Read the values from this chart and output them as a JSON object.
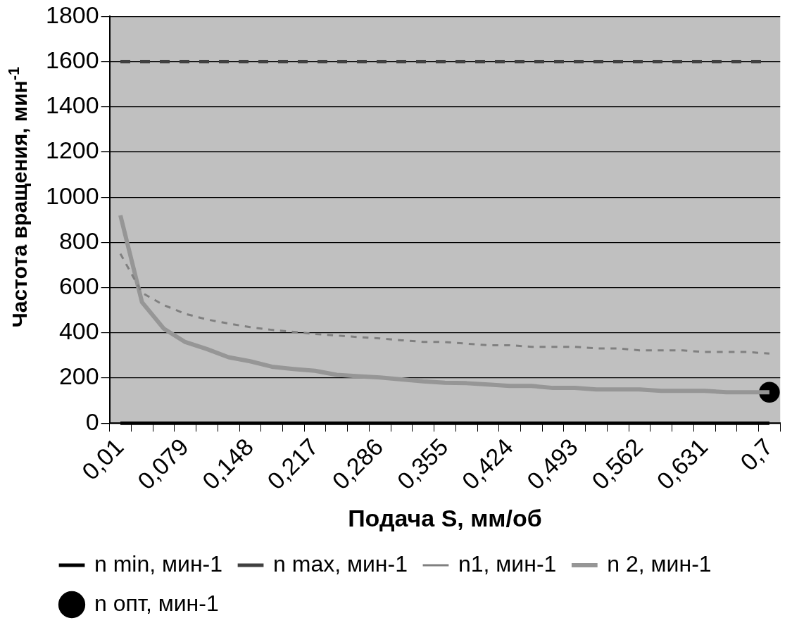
{
  "chart_data": {
    "type": "line",
    "xlabel": "Подача S, мм/об",
    "ylabel": "Частота вращения, мин$^{-1}$",
    "categories": [
      "0,01",
      null,
      null,
      "0,079",
      null,
      null,
      "0,148",
      null,
      null,
      "0,217",
      null,
      null,
      "0,286",
      null,
      null,
      "0,355",
      null,
      null,
      "0,424",
      null,
      null,
      "0,493",
      null,
      null,
      "0,562",
      null,
      null,
      "0,631",
      null,
      null,
      "0,7"
    ],
    "series": [
      {
        "name": "n min, мин-1",
        "color": "#000000",
        "line_style": "solid",
        "marker": "none",
        "values": [
          0,
          0,
          0,
          0,
          0,
          0,
          0,
          0,
          0,
          0,
          0,
          0,
          0,
          0,
          0,
          0,
          0,
          0,
          0,
          0,
          0,
          0,
          0,
          0,
          0,
          0,
          0,
          0,
          0,
          0,
          0
        ]
      },
      {
        "name": "n max, мин-1",
        "color": "#404040",
        "line_style": "dashed",
        "marker": "none",
        "values": [
          1600,
          1600,
          1600,
          1600,
          1600,
          1600,
          1600,
          1600,
          1600,
          1600,
          1600,
          1600,
          1600,
          1600,
          1600,
          1600,
          1600,
          1600,
          1600,
          1600,
          1600,
          1600,
          1600,
          1600,
          1600,
          1600,
          1600,
          1600,
          1600,
          1600,
          1600
        ]
      },
      {
        "name": "n1, мин-1",
        "color": "#808080",
        "line_style": "dashed",
        "marker": "none",
        "values": [
          750,
          577,
          523,
          484,
          459,
          441,
          425,
          413,
          404,
          395,
          388,
          381,
          375,
          367,
          360,
          359,
          352,
          345,
          345,
          338,
          338,
          338,
          331,
          331,
          322,
          322,
          322,
          315,
          315,
          315,
          308
        ]
      },
      {
        "name": "n 2, мин-1",
        "color": "#969696",
        "line_style": "solid",
        "marker": "none",
        "values": [
          920,
          535,
          419,
          359,
          328,
          292,
          274,
          250,
          240,
          232,
          214,
          208,
          202,
          194,
          185,
          179,
          177,
          171,
          165,
          165,
          156,
          156,
          149,
          149,
          149,
          143,
          143,
          143,
          137,
          137,
          137
        ]
      },
      {
        "name": "n опт, мин-1",
        "color": "#000000",
        "line_style": "solid",
        "marker": "circle",
        "values": [
          null,
          null,
          null,
          null,
          null,
          null,
          null,
          null,
          null,
          null,
          null,
          null,
          null,
          null,
          null,
          null,
          null,
          null,
          null,
          null,
          null,
          null,
          null,
          null,
          null,
          null,
          null,
          null,
          null,
          null,
          137
        ]
      }
    ],
    "ylim": [
      0,
      1800
    ],
    "yticks": [
      0,
      200,
      400,
      600,
      800,
      1000,
      1200,
      1400,
      1600,
      1800
    ],
    "grid": "y",
    "legend": "bottom"
  }
}
